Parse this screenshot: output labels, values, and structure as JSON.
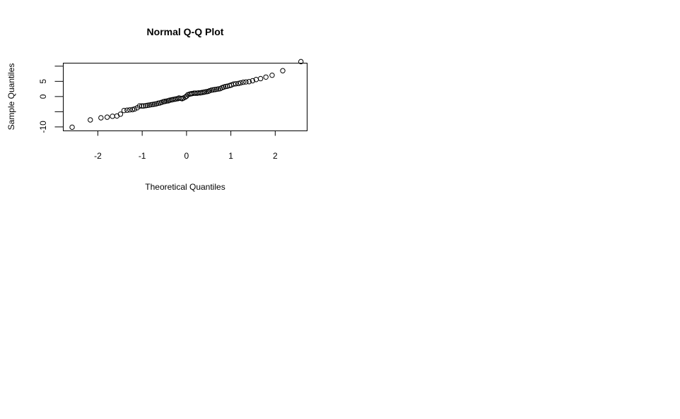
{
  "chart_data": {
    "type": "scatter",
    "title": "Normal Q-Q Plot",
    "xlabel": "Theoretical Quantiles",
    "ylabel": "Sample Quantiles",
    "xlim": [
      -2.78,
      2.72
    ],
    "ylim": [
      -11.3,
      11.0
    ],
    "x_ticks": [
      -2,
      -1,
      0,
      1,
      2
    ],
    "x_tick_labels": [
      "-2",
      "-1",
      "0",
      "1",
      "2"
    ],
    "y_ticks": [
      -10,
      -5,
      0,
      5,
      10
    ],
    "y_tick_labels": [
      "-10",
      "",
      "0",
      "5",
      ""
    ],
    "grid": false,
    "points": [
      [
        -2.58,
        -10.1
      ],
      [
        -2.17,
        -7.7
      ],
      [
        -1.93,
        -7.0
      ],
      [
        -1.79,
        -6.8
      ],
      [
        -1.67,
        -6.5
      ],
      [
        -1.57,
        -6.4
      ],
      [
        -1.49,
        -5.8
      ],
      [
        -1.41,
        -4.6
      ],
      [
        -1.34,
        -4.5
      ],
      [
        -1.28,
        -4.4
      ],
      [
        -1.22,
        -4.3
      ],
      [
        -1.17,
        -4.1
      ],
      [
        -1.11,
        -3.7
      ],
      [
        -1.06,
        -3.1
      ],
      [
        -1.01,
        -3.1
      ],
      [
        -0.97,
        -3.1
      ],
      [
        -0.92,
        -3.0
      ],
      [
        -0.88,
        -2.9
      ],
      [
        -0.84,
        -2.8
      ],
      [
        -0.8,
        -2.7
      ],
      [
        -0.76,
        -2.6
      ],
      [
        -0.72,
        -2.5
      ],
      [
        -0.68,
        -2.4
      ],
      [
        -0.64,
        -2.2
      ],
      [
        -0.6,
        -2.1
      ],
      [
        -0.56,
        -1.9
      ],
      [
        -0.52,
        -1.7
      ],
      [
        -0.49,
        -1.6
      ],
      [
        -0.45,
        -1.5
      ],
      [
        -0.41,
        -1.4
      ],
      [
        -0.38,
        -1.2
      ],
      [
        -0.34,
        -1.1
      ],
      [
        -0.31,
        -1.0
      ],
      [
        -0.27,
        -0.9
      ],
      [
        -0.24,
        -0.8
      ],
      [
        -0.2,
        -0.7
      ],
      [
        -0.17,
        -0.5
      ],
      [
        -0.13,
        -0.6
      ],
      [
        -0.1,
        -0.7
      ],
      [
        -0.07,
        -0.5
      ],
      [
        -0.03,
        -0.2
      ],
      [
        0.0,
        0.1
      ],
      [
        0.03,
        0.6
      ],
      [
        0.07,
        0.8
      ],
      [
        0.1,
        0.9
      ],
      [
        0.13,
        1.0
      ],
      [
        0.17,
        1.1
      ],
      [
        0.2,
        1.1
      ],
      [
        0.24,
        1.1
      ],
      [
        0.27,
        1.2
      ],
      [
        0.31,
        1.2
      ],
      [
        0.34,
        1.3
      ],
      [
        0.38,
        1.4
      ],
      [
        0.41,
        1.5
      ],
      [
        0.45,
        1.6
      ],
      [
        0.49,
        1.7
      ],
      [
        0.52,
        1.9
      ],
      [
        0.56,
        2.1
      ],
      [
        0.6,
        2.2
      ],
      [
        0.64,
        2.3
      ],
      [
        0.68,
        2.4
      ],
      [
        0.72,
        2.5
      ],
      [
        0.76,
        2.6
      ],
      [
        0.8,
        2.9
      ],
      [
        0.84,
        3.1
      ],
      [
        0.88,
        3.3
      ],
      [
        0.92,
        3.4
      ],
      [
        0.97,
        3.6
      ],
      [
        1.01,
        3.8
      ],
      [
        1.06,
        4.1
      ],
      [
        1.11,
        4.2
      ],
      [
        1.17,
        4.3
      ],
      [
        1.22,
        4.5
      ],
      [
        1.28,
        4.7
      ],
      [
        1.34,
        4.8
      ],
      [
        1.41,
        4.9
      ],
      [
        1.49,
        5.2
      ],
      [
        1.57,
        5.6
      ],
      [
        1.67,
        5.9
      ],
      [
        1.79,
        6.4
      ],
      [
        1.93,
        7.0
      ],
      [
        2.17,
        8.5
      ],
      [
        2.58,
        11.5
      ]
    ]
  }
}
